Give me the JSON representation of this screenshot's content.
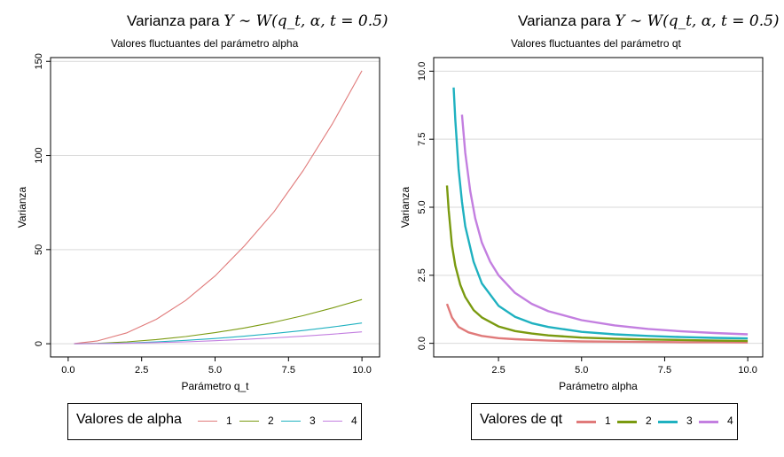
{
  "chart_data": [
    {
      "type": "line",
      "title_prefix": "Varianza para",
      "title_math": "Y ∼ W(q_t, α, t = 0.5)",
      "subtitle": "Valores fluctuantes del parámetro alpha",
      "xlabel": "Parámetro q_t",
      "ylabel": "Varianza",
      "xlim": [
        -0.6,
        10.6
      ],
      "ylim": [
        -7,
        152
      ],
      "xticks": [
        "0.0",
        "2.5",
        "5.0",
        "7.5",
        "10.0"
      ],
      "xtick_values": [
        0,
        2.5,
        5,
        7.5,
        10
      ],
      "yticks": [
        "0",
        "50",
        "100",
        "150"
      ],
      "ytick_values": [
        0,
        50,
        100,
        150
      ],
      "grid": true,
      "legend_title": "Valores de alpha",
      "legend_placement": "bottom",
      "line_width": "thin",
      "series": [
        {
          "name": "1",
          "color": "#e07a7a",
          "x": [
            0.2,
            1,
            2,
            3,
            4,
            5,
            6,
            7,
            8,
            9,
            10
          ],
          "y": [
            0.1,
            1.5,
            5.8,
            13,
            23,
            36,
            52,
            70,
            92,
            117,
            145
          ]
        },
        {
          "name": "2",
          "color": "#7a9a10",
          "x": [
            0.2,
            1,
            2,
            3,
            4,
            5,
            6,
            7,
            8,
            9,
            10
          ],
          "y": [
            0.0,
            0.2,
            1.0,
            2.2,
            3.8,
            5.9,
            8.4,
            11.4,
            14.9,
            19.0,
            23.5
          ]
        },
        {
          "name": "3",
          "color": "#1fb1c0",
          "x": [
            0.2,
            1,
            2,
            3,
            4,
            5,
            6,
            7,
            8,
            9,
            10
          ],
          "y": [
            0.0,
            0.1,
            0.4,
            1.0,
            1.8,
            2.8,
            4.0,
            5.4,
            7.0,
            8.9,
            11.0
          ]
        },
        {
          "name": "4",
          "color": "#c37fe0",
          "x": [
            0.2,
            1,
            2,
            3,
            4,
            5,
            6,
            7,
            8,
            9,
            10
          ],
          "y": [
            0.0,
            0.05,
            0.25,
            0.6,
            1.0,
            1.6,
            2.3,
            3.1,
            4.0,
            5.1,
            6.3
          ]
        }
      ]
    },
    {
      "type": "line",
      "title_prefix": "Varianza para",
      "title_math": "Y ∼ W(q_t, α, t = 0.5)",
      "subtitle": "Valores fluctuantes del parámetro qt",
      "xlabel": "Parámetro alpha",
      "ylabel": "Varianza",
      "xlim": [
        0.55,
        10.45
      ],
      "ylim": [
        -0.5,
        10.5
      ],
      "xticks": [
        "2.5",
        "5.0",
        "7.5",
        "10.0"
      ],
      "xtick_values": [
        2.5,
        5,
        7.5,
        10
      ],
      "yticks": [
        "0.0",
        "2.5",
        "5.0",
        "7.5",
        "10.0"
      ],
      "ytick_values": [
        0,
        2.5,
        5,
        7.5,
        10
      ],
      "grid": true,
      "legend_title": "Valores de qt",
      "legend_placement": "bottom",
      "line_width": "thick",
      "series": [
        {
          "name": "1",
          "color": "#e07a7a",
          "x": [
            0.95,
            1.1,
            1.3,
            1.6,
            2.0,
            2.5,
            3,
            4,
            5,
            6,
            7,
            8,
            9,
            10
          ],
          "y": [
            1.45,
            0.95,
            0.6,
            0.4,
            0.27,
            0.19,
            0.15,
            0.1,
            0.07,
            0.06,
            0.05,
            0.04,
            0.04,
            0.03
          ]
        },
        {
          "name": "2",
          "color": "#7a9a10",
          "x": [
            0.95,
            1.0,
            1.1,
            1.2,
            1.35,
            1.5,
            1.75,
            2.0,
            2.5,
            3,
            3.5,
            4,
            5,
            6,
            7,
            8,
            9,
            10
          ],
          "y": [
            5.8,
            4.9,
            3.6,
            2.85,
            2.15,
            1.7,
            1.22,
            0.95,
            0.62,
            0.45,
            0.36,
            0.29,
            0.21,
            0.17,
            0.14,
            0.12,
            0.1,
            0.09
          ]
        },
        {
          "name": "3",
          "color": "#1fb1c0",
          "x": [
            1.15,
            1.2,
            1.3,
            1.4,
            1.5,
            1.75,
            2.0,
            2.5,
            3,
            3.5,
            4,
            5,
            6,
            7,
            8,
            9,
            10
          ],
          "y": [
            9.4,
            8.2,
            6.4,
            5.2,
            4.3,
            3.0,
            2.2,
            1.38,
            0.97,
            0.74,
            0.6,
            0.42,
            0.33,
            0.27,
            0.23,
            0.2,
            0.18
          ]
        },
        {
          "name": "4",
          "color": "#c37fe0",
          "x": [
            1.4,
            1.5,
            1.65,
            1.8,
            2.0,
            2.25,
            2.5,
            3,
            3.5,
            4,
            5,
            6,
            7,
            8,
            9,
            10
          ],
          "y": [
            8.4,
            7.0,
            5.6,
            4.6,
            3.7,
            3.0,
            2.5,
            1.85,
            1.45,
            1.18,
            0.85,
            0.66,
            0.53,
            0.44,
            0.38,
            0.33
          ]
        }
      ]
    }
  ]
}
